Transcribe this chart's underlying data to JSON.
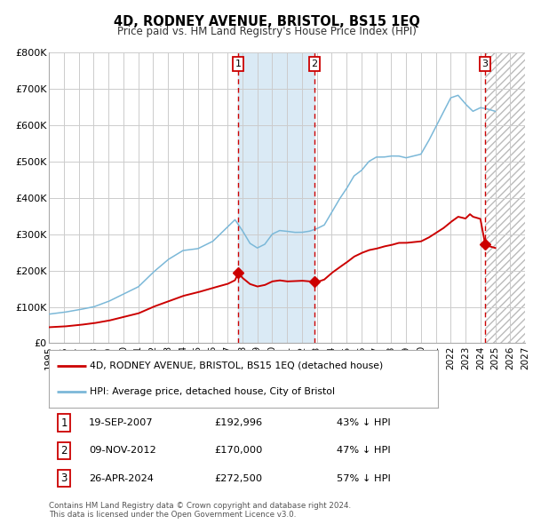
{
  "title": "4D, RODNEY AVENUE, BRISTOL, BS15 1EQ",
  "subtitle": "Price paid vs. HM Land Registry's House Price Index (HPI)",
  "xlim": [
    1995.0,
    2027.0
  ],
  "ylim": [
    0,
    800000
  ],
  "yticks": [
    0,
    100000,
    200000,
    300000,
    400000,
    500000,
    600000,
    700000,
    800000
  ],
  "ytick_labels": [
    "£0",
    "£100K",
    "£200K",
    "£300K",
    "£400K",
    "£500K",
    "£600K",
    "£700K",
    "£800K"
  ],
  "xtick_years": [
    1995,
    1996,
    1997,
    1998,
    1999,
    2000,
    2001,
    2002,
    2003,
    2004,
    2005,
    2006,
    2007,
    2008,
    2009,
    2010,
    2011,
    2012,
    2013,
    2014,
    2015,
    2016,
    2017,
    2018,
    2019,
    2020,
    2021,
    2022,
    2023,
    2024,
    2025,
    2026,
    2027
  ],
  "hpi_color": "#7bb8d8",
  "price_color": "#cc0000",
  "shaded_region_color": "#daeaf5",
  "event1_date": 2007.72,
  "event2_date": 2012.85,
  "event3_date": 2024.32,
  "event1_price": 192996,
  "event2_price": 170000,
  "event3_price": 272500,
  "legend_line1": "4D, RODNEY AVENUE, BRISTOL, BS15 1EQ (detached house)",
  "legend_line2": "HPI: Average price, detached house, City of Bristol",
  "table_rows": [
    {
      "num": "1",
      "date": "19-SEP-2007",
      "price": "£192,996",
      "hpi": "43% ↓ HPI"
    },
    {
      "num": "2",
      "date": "09-NOV-2012",
      "price": "£170,000",
      "hpi": "47% ↓ HPI"
    },
    {
      "num": "3",
      "date": "26-APR-2024",
      "price": "£272,500",
      "hpi": "57% ↓ HPI"
    }
  ],
  "footer": "Contains HM Land Registry data © Crown copyright and database right 2024.\nThis data is licensed under the Open Government Licence v3.0."
}
